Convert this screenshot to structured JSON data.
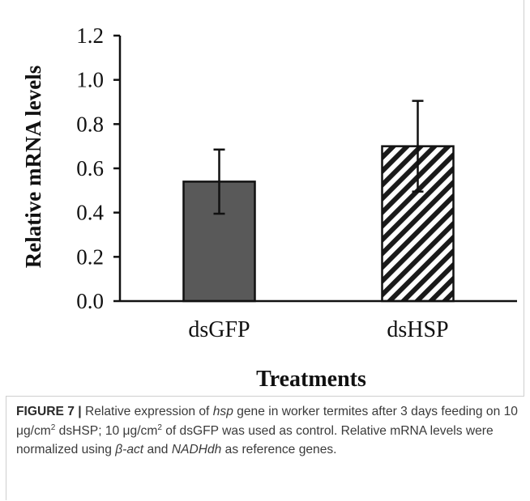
{
  "chart_data": {
    "type": "bar",
    "title": "",
    "xlabel": "Treatments",
    "ylabel": "Relative mRNA levels",
    "ylim": [
      0,
      1.2
    ],
    "yticks": [
      "0.0",
      "0.2",
      "0.4",
      "0.6",
      "0.8",
      "1.0",
      "1.2"
    ],
    "categories": [
      "dsGFP",
      "dsHSP"
    ],
    "values": [
      0.54,
      0.7
    ],
    "error": [
      0.145,
      0.205
    ],
    "bar_styles": [
      "solid",
      "hatched"
    ],
    "bar_colors": [
      "#595959",
      "#ffffff"
    ],
    "grid": false,
    "legend": "none"
  },
  "caption": {
    "label": "FIGURE 7 |",
    "text_parts": [
      {
        "t": " Relative expression of ",
        "s": "n"
      },
      {
        "t": "hsp",
        "s": "i"
      },
      {
        "t": " gene in worker termites after 3 days feeding on 10 μg/cm",
        "s": "n"
      },
      {
        "t": "2",
        "s": "sup"
      },
      {
        "t": " dsHSP; 10 μg/cm",
        "s": "n"
      },
      {
        "t": "2",
        "s": "sup"
      },
      {
        "t": " of dsGFP was used as control. Relative mRNA levels were normalized using ",
        "s": "n"
      },
      {
        "t": "β-act",
        "s": "i"
      },
      {
        "t": " and ",
        "s": "n"
      },
      {
        "t": "NADHdh",
        "s": "i"
      },
      {
        "t": " as reference genes.",
        "s": "n"
      }
    ]
  }
}
